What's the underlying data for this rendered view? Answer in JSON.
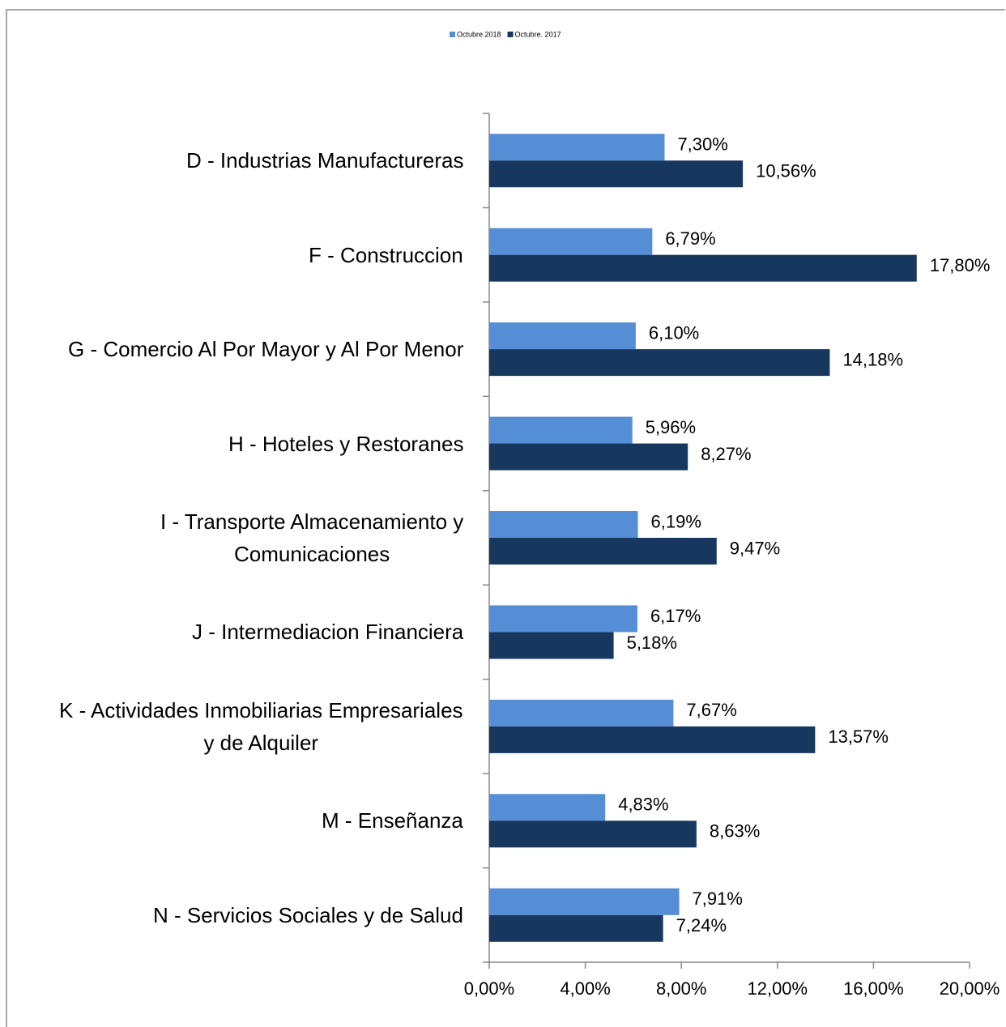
{
  "chart_data": {
    "type": "hbar",
    "categories": [
      "D - Industrias  Manufactureras",
      "F - Construccion",
      "G - Comercio Al Por Mayor y Al Por  Menor",
      "H - Hoteles y Restoranes",
      "I - Transporte Almacenamiento y\nComunicaciones",
      "J - Intermediacion Financiera",
      "K - Actividades Inmobiliarias Empresariales\ny de Alquiler",
      "M - Enseñanza",
      "N - Servicios Sociales y de Salud"
    ],
    "series": [
      {
        "name": "Octubre.2018",
        "color": "#558ed5",
        "values": [
          7.3,
          6.79,
          6.1,
          5.96,
          6.19,
          6.17,
          7.67,
          4.83,
          7.91
        ],
        "value_labels": [
          "7,30%",
          "6,79%",
          "6,10%",
          "5,96%",
          "6,19%",
          "6,17%",
          "7,67%",
          "4,83%",
          "7,91%"
        ]
      },
      {
        "name": "Octubre. 2017",
        "color": "#17375e",
        "values": [
          10.56,
          17.8,
          14.18,
          8.27,
          9.47,
          5.18,
          13.57,
          8.63,
          7.24
        ],
        "value_labels": [
          "10,56%",
          "17,80%",
          "14,18%",
          "8,27%",
          "9,47%",
          "5,18%",
          "13,57%",
          "8,63%",
          "7,24%"
        ]
      }
    ],
    "xlim": [
      0,
      20
    ],
    "xticks": [
      {
        "value": 0,
        "label": "0,00%"
      },
      {
        "value": 4,
        "label": "4,00%"
      },
      {
        "value": 8,
        "label": "8,00%"
      },
      {
        "value": 12,
        "label": "12,00%"
      },
      {
        "value": 16,
        "label": "16,00%"
      },
      {
        "value": 20,
        "label": "20,00%"
      }
    ],
    "legend": "top"
  }
}
